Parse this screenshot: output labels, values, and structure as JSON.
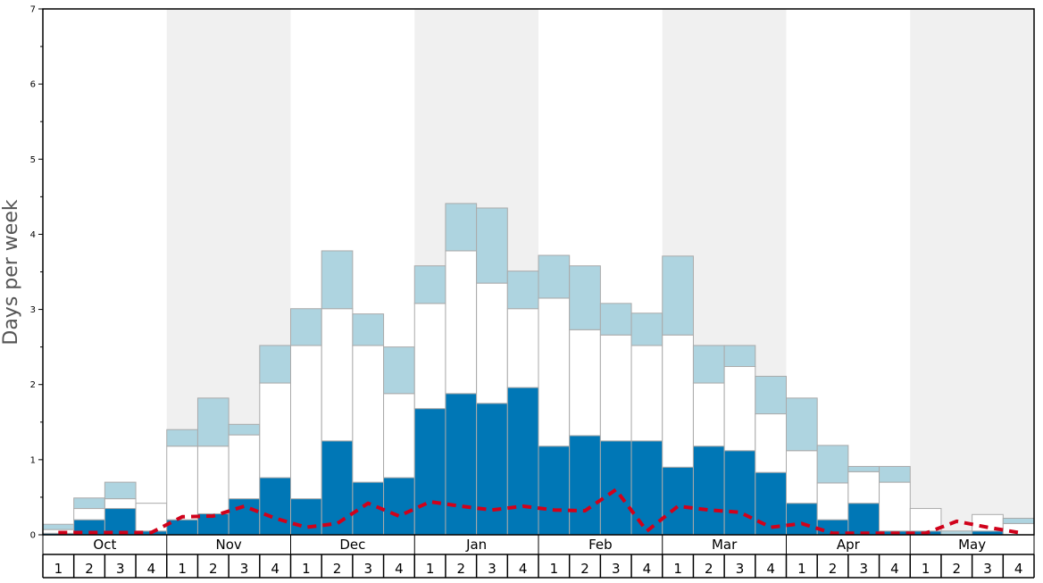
{
  "chart_data": {
    "type": "bar",
    "stacked": true,
    "ylabel": "Days per week",
    "ylim": [
      0,
      7
    ],
    "ymajor_ticks": [
      0,
      1,
      2,
      3,
      4,
      5,
      6,
      7
    ],
    "ytick_labels": [
      "0",
      "1",
      "2",
      "3",
      "4",
      "5",
      "6",
      "7"
    ],
    "grid": false,
    "months": [
      "Oct",
      "Nov",
      "Dec",
      "Jan",
      "Feb",
      "Mar",
      "Apr",
      "May"
    ],
    "week_labels": [
      "1",
      "2",
      "3",
      "4"
    ],
    "categories": [
      "Oct 1",
      "Oct 2",
      "Oct 3",
      "Oct 4",
      "Nov 1",
      "Nov 2",
      "Nov 3",
      "Nov 4",
      "Dec 1",
      "Dec 2",
      "Dec 3",
      "Dec 4",
      "Jan 1",
      "Jan 2",
      "Jan 3",
      "Jan 4",
      "Feb 1",
      "Feb 2",
      "Feb 3",
      "Feb 4",
      "Mar 1",
      "Mar 2",
      "Mar 3",
      "Mar 4",
      "Apr 1",
      "Apr 2",
      "Apr 3",
      "Apr 4",
      "May 1",
      "May 2",
      "May 3",
      "May 4"
    ],
    "series": [
      {
        "color": "#0077b6",
        "values": [
          0.02,
          0.2,
          0.35,
          0.05,
          0.2,
          0.28,
          0.48,
          0.76,
          0.48,
          1.25,
          0.7,
          0.76,
          1.68,
          1.88,
          1.75,
          1.96,
          1.18,
          1.32,
          1.25,
          1.25,
          0.9,
          1.18,
          1.12,
          0.83,
          0.42,
          0.2,
          0.42,
          0.05,
          0.05,
          0.0,
          0.05,
          0.0
        ]
      },
      {
        "color": "#ffffff",
        "values": [
          0.05,
          0.15,
          0.13,
          0.37,
          0.98,
          0.9,
          0.85,
          1.26,
          2.04,
          1.76,
          1.82,
          1.12,
          1.4,
          1.9,
          1.6,
          1.05,
          1.97,
          1.41,
          1.41,
          1.27,
          1.76,
          0.84,
          1.12,
          0.78,
          0.7,
          0.49,
          0.42,
          0.65,
          0.3,
          0.0,
          0.22,
          0.15
        ]
      },
      {
        "color": "#aed4e0",
        "values": [
          0.07,
          0.14,
          0.22,
          0.0,
          0.22,
          0.64,
          0.14,
          0.5,
          0.49,
          0.77,
          0.42,
          0.62,
          0.5,
          0.63,
          1.0,
          0.5,
          0.57,
          0.85,
          0.42,
          0.43,
          1.05,
          0.5,
          0.28,
          0.5,
          0.7,
          0.5,
          0.07,
          0.21,
          0.0,
          0.05,
          0.0,
          0.07
        ]
      }
    ],
    "line": {
      "color": "#d0021b",
      "style": "dashed",
      "values": [
        0.03,
        0.03,
        0.03,
        0.03,
        0.24,
        0.25,
        0.38,
        0.22,
        0.1,
        0.15,
        0.42,
        0.25,
        0.44,
        0.38,
        0.33,
        0.38,
        0.33,
        0.32,
        0.6,
        0.05,
        0.38,
        0.33,
        0.3,
        0.1,
        0.15,
        0.02,
        0.02,
        0.02,
        0.02,
        0.18,
        0.1,
        0.03
      ]
    },
    "month_band_colors": [
      "#ffffff",
      "#f0f0f0"
    ]
  }
}
